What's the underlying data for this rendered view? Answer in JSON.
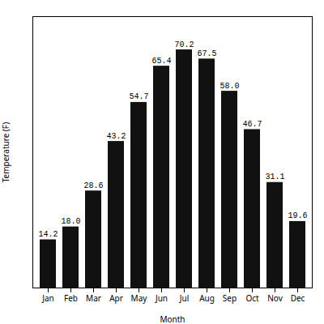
{
  "chart_data": {
    "type": "bar",
    "categories": [
      "Jan",
      "Feb",
      "Mar",
      "Apr",
      "May",
      "Jun",
      "Jul",
      "Aug",
      "Sep",
      "Oct",
      "Nov",
      "Dec"
    ],
    "values": [
      14.2,
      18.0,
      28.6,
      43.2,
      54.7,
      65.4,
      70.2,
      67.5,
      58.0,
      46.7,
      31.1,
      19.6
    ],
    "value_labels": [
      "14.2",
      "18.0",
      "28.6",
      "43.2",
      "54.7",
      "65.4",
      "70.2",
      "67.5",
      "58.0",
      "46.7",
      "31.1",
      "19.6"
    ],
    "color": "#111111",
    "xlabel": "Month",
    "ylabel": "Temperature (F)",
    "ylim": [
      0,
      80
    ],
    "grid": false,
    "data_labels": true,
    "tick_labels": "x"
  }
}
